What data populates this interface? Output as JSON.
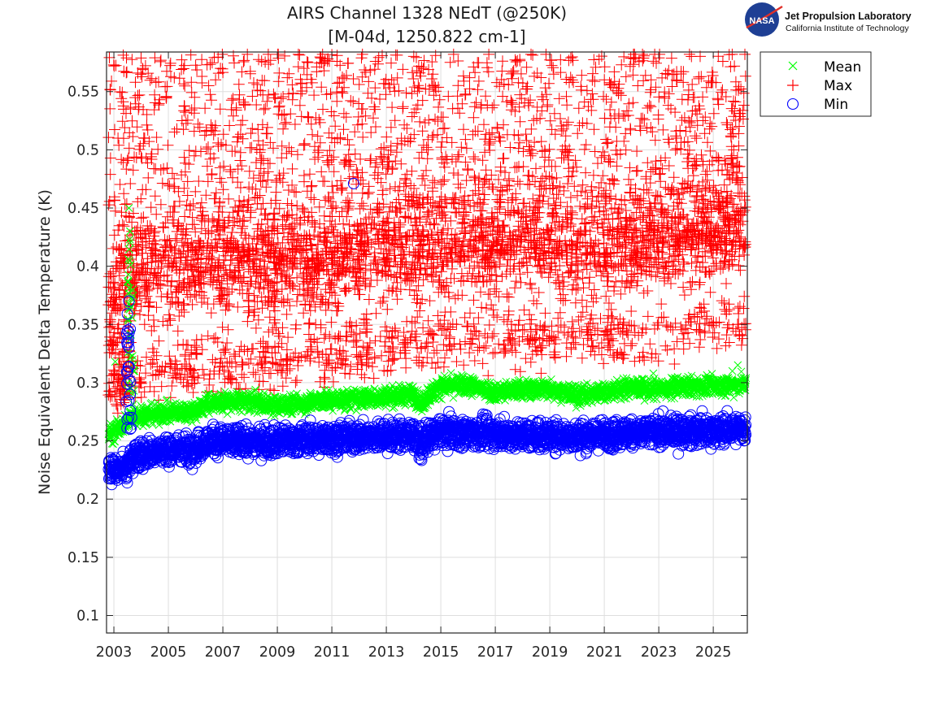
{
  "logo": {
    "agency": "NASA",
    "org_name": "Jet Propulsion Laboratory",
    "org_sub": "California Institute of Technology"
  },
  "chart_data": {
    "type": "scatter",
    "title_lines": [
      "AIRS Channel 1328 NEdT (@250K)",
      "[M-04d, 1250.822 cm-1]"
    ],
    "xlabel": "",
    "ylabel": "Noise Equivalent Delta Temperature (K)",
    "xlim": [
      2002.73,
      2026.25
    ],
    "ylim": [
      0.085,
      0.584
    ],
    "xticks": [
      2003,
      2005,
      2007,
      2009,
      2011,
      2013,
      2015,
      2017,
      2019,
      2021,
      2023,
      2025
    ],
    "xtick_labels": [
      "2003",
      "2005",
      "2007",
      "2009",
      "2011",
      "2013",
      "2015",
      "2017",
      "2019",
      "2021",
      "2023",
      "2025"
    ],
    "yticks": [
      0.1,
      0.15,
      0.2,
      0.25,
      0.3,
      0.35,
      0.4,
      0.45,
      0.5,
      0.55
    ],
    "ytick_labels": [
      "0.1",
      "0.15",
      "0.2",
      "0.25",
      "0.3",
      "0.35",
      "0.4",
      "0.45",
      "0.5",
      "0.55"
    ],
    "grid": true,
    "legend_position": "outside-top-right",
    "series": [
      {
        "name": "Mean",
        "marker": "x",
        "color": "#00ff00",
        "trend_x": [
          2002.8,
          2003.3,
          2003.6,
          2003.9,
          2005.0,
          2006.0,
          2006.5,
          2008.0,
          2009.0,
          2010.0,
          2011.0,
          2012.0,
          2013.0,
          2014.0,
          2014.3,
          2014.5,
          2015.0,
          2016.0,
          2017.0,
          2018.0,
          2019.0,
          2020.0,
          2021.0,
          2022.0,
          2023.0,
          2024.0,
          2025.0,
          2026.2
        ],
        "trend_y": [
          0.255,
          0.262,
          0.27,
          0.272,
          0.274,
          0.276,
          0.283,
          0.284,
          0.28,
          0.283,
          0.285,
          0.286,
          0.288,
          0.29,
          0.282,
          0.288,
          0.297,
          0.298,
          0.292,
          0.294,
          0.295,
          0.289,
          0.292,
          0.296,
          0.294,
          0.297,
          0.297,
          0.299
        ],
        "spread": 0.004,
        "outliers": [
          [
            2003.05,
            0.318
          ],
          [
            2003.55,
            0.45
          ],
          [
            2003.6,
            0.43
          ],
          [
            2003.7,
            0.38
          ],
          [
            2003.75,
            0.31
          ],
          [
            2022.8,
            0.308
          ],
          [
            2025.7,
            0.31
          ],
          [
            2025.9,
            0.315
          ]
        ]
      },
      {
        "name": "Max",
        "marker": "+",
        "color": "#ff0000",
        "trend_x": [
          2002.8,
          2003.5,
          2004.0,
          2006.0,
          2008.0,
          2010.0,
          2012.0,
          2014.0,
          2016.0,
          2018.0,
          2020.0,
          2022.0,
          2024.0,
          2026.2
        ],
        "trend_y": [
          0.37,
          0.39,
          0.4,
          0.4,
          0.405,
          0.405,
          0.415,
          0.42,
          0.42,
          0.425,
          0.42,
          0.425,
          0.43,
          0.44
        ],
        "spread": 0.022,
        "lower_band_y": [
          0.29,
          0.3,
          0.305,
          0.31,
          0.315,
          0.32,
          0.33,
          0.33,
          0.34,
          0.335,
          0.34,
          0.34,
          0.345,
          0.35
        ],
        "scatter_range": [
          0.28,
          0.584
        ]
      },
      {
        "name": "Min",
        "marker": "o",
        "color": "#0000ff",
        "trend_x": [
          2002.8,
          2003.5,
          2003.8,
          2005.0,
          2006.0,
          2006.5,
          2008.0,
          2010.0,
          2012.0,
          2014.0,
          2014.3,
          2014.5,
          2015.0,
          2016.0,
          2018.0,
          2020.0,
          2022.0,
          2024.0,
          2026.2
        ],
        "trend_y": [
          0.225,
          0.228,
          0.238,
          0.242,
          0.244,
          0.25,
          0.249,
          0.251,
          0.253,
          0.255,
          0.246,
          0.252,
          0.258,
          0.257,
          0.255,
          0.254,
          0.257,
          0.258,
          0.26
        ],
        "spread": 0.006,
        "outliers": [
          [
            2011.8,
            0.471
          ],
          [
            2003.55,
            0.37
          ],
          [
            2003.5,
            0.345
          ],
          [
            2003.55,
            0.33
          ],
          [
            2003.5,
            0.31
          ],
          [
            2003.6,
            0.29
          ],
          [
            2003.65,
            0.27
          ]
        ]
      }
    ]
  }
}
